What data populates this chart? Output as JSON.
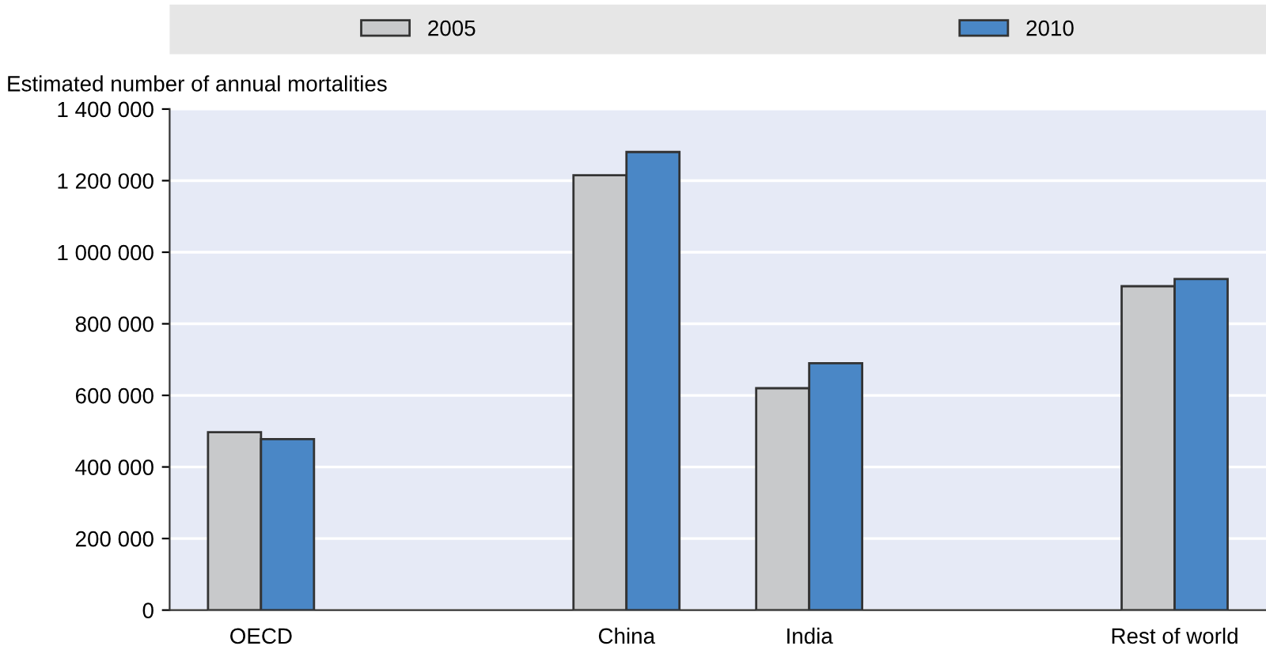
{
  "chart_data": {
    "type": "bar",
    "ylabel": "Estimated number of annual mortalities",
    "categories": [
      "OECD",
      null,
      "China",
      "India",
      null,
      "Rest of world"
    ],
    "series": [
      {
        "name": "2005",
        "color": "#c8c9cb",
        "values": [
          497000,
          null,
          1215000,
          620000,
          null,
          905000
        ]
      },
      {
        "name": "2010",
        "color": "#4a87c6",
        "values": [
          478000,
          null,
          1280000,
          690000,
          null,
          925000
        ]
      }
    ],
    "ylim": [
      0,
      1400000
    ],
    "yticks": [
      0,
      {
        "value": 200000,
        "label": "200 000"
      },
      {
        "value": 400000,
        "label": "400 000"
      },
      {
        "value": 600000,
        "label": "600 000"
      },
      {
        "value": 800000,
        "label": "800 000"
      },
      {
        "value": 1000000,
        "label": "1 000 000"
      },
      {
        "value": 1200000,
        "label": "1 200 000"
      },
      {
        "value": 1400000,
        "label": "1 400 000"
      }
    ],
    "grid": "y",
    "legend": "top"
  }
}
